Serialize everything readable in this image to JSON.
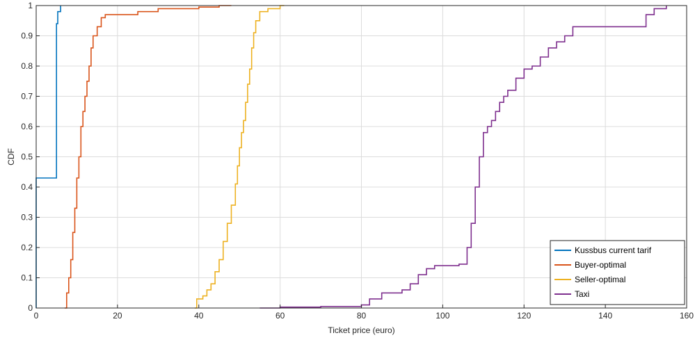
{
  "chart_data": {
    "type": "line",
    "title": "",
    "xlabel": "Ticket price (euro)",
    "ylabel": "CDF",
    "xlim": [
      0,
      160
    ],
    "ylim": [
      0,
      1
    ],
    "xticks": [
      "0",
      "20",
      "40",
      "60",
      "80",
      "100",
      "120",
      "140",
      "160"
    ],
    "yticks": [
      "0",
      "0.1",
      "0.2",
      "0.3",
      "0.4",
      "0.5",
      "0.6",
      "0.7",
      "0.8",
      "0.9",
      "1"
    ],
    "grid": true,
    "legend_position": "bottom-right",
    "series": [
      {
        "name": "Kussbus current tarif",
        "color": "#0072BD",
        "x": [
          0,
          0,
          5,
          5,
          5.3,
          5.3,
          6,
          6
        ],
        "y": [
          0,
          0.43,
          0.43,
          0.94,
          0.94,
          0.98,
          0.98,
          1.0
        ]
      },
      {
        "name": "Buyer-optimal",
        "color": "#D95319",
        "x": [
          7,
          7.5,
          8,
          8.5,
          9,
          9.5,
          10,
          10.5,
          11,
          11.5,
          12,
          12.5,
          13,
          13.5,
          14,
          15,
          16,
          17,
          20,
          25,
          30,
          35,
          40,
          45,
          48
        ],
        "y": [
          0,
          0.05,
          0.1,
          0.16,
          0.25,
          0.33,
          0.43,
          0.5,
          0.6,
          0.65,
          0.7,
          0.75,
          0.8,
          0.86,
          0.9,
          0.93,
          0.96,
          0.97,
          0.97,
          0.98,
          0.99,
          0.99,
          0.995,
          1.0,
          1.0
        ]
      },
      {
        "name": "Seller-optimal",
        "color": "#EDB120",
        "x": [
          39,
          39.5,
          41,
          42,
          43,
          44,
          45,
          46,
          47,
          48,
          49,
          49.5,
          50,
          50.5,
          51,
          51.5,
          52,
          52.5,
          53,
          53.5,
          54,
          55,
          57,
          60,
          61
        ],
        "y": [
          0,
          0.03,
          0.04,
          0.06,
          0.08,
          0.12,
          0.16,
          0.22,
          0.28,
          0.34,
          0.41,
          0.47,
          0.53,
          0.58,
          0.62,
          0.68,
          0.74,
          0.79,
          0.86,
          0.91,
          0.95,
          0.98,
          0.99,
          1.0,
          1.0
        ]
      },
      {
        "name": "Taxi",
        "color": "#7E2F8E",
        "x": [
          55,
          60,
          70,
          80,
          82,
          85,
          88,
          90,
          92,
          94,
          96,
          98,
          100,
          104,
          106,
          107,
          108,
          109,
          110,
          111,
          112,
          113,
          114,
          115,
          116,
          118,
          120,
          122,
          124,
          126,
          128,
          130,
          132,
          140,
          148,
          150,
          152,
          155
        ],
        "y": [
          0,
          0.003,
          0.005,
          0.01,
          0.03,
          0.05,
          0.05,
          0.06,
          0.08,
          0.11,
          0.13,
          0.14,
          0.14,
          0.145,
          0.2,
          0.28,
          0.4,
          0.5,
          0.58,
          0.6,
          0.62,
          0.65,
          0.68,
          0.7,
          0.72,
          0.76,
          0.79,
          0.8,
          0.83,
          0.86,
          0.88,
          0.9,
          0.93,
          0.93,
          0.93,
          0.97,
          0.99,
          1.0
        ]
      }
    ]
  }
}
